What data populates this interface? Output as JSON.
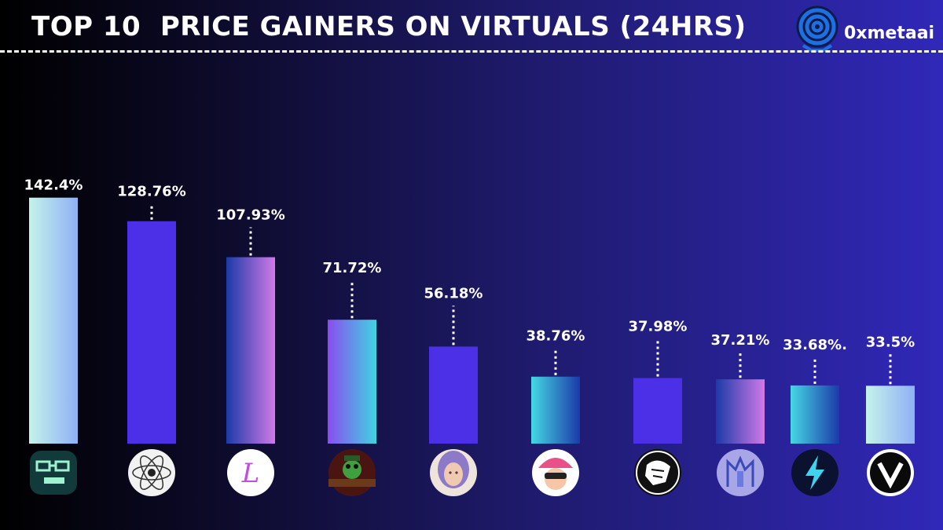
{
  "header": {
    "title": "TOP 10  PRICE GAINERS ON VIRTUALS (24HRS)",
    "brand": "0xmetaai"
  },
  "colors": {
    "bar_purple": "#4b30e8",
    "cyan_light": "#c4f3ea",
    "cyan": "#40d4e0",
    "blue": "#4a8cf0",
    "navy": "#1b3aa8",
    "violet": "#8a4df0",
    "pink": "#d07ae8"
  },
  "chart_data": {
    "type": "bar",
    "title": "TOP 10  PRICE GAINERS ON VIRTUALS (24HRS)",
    "xlabel": "",
    "ylabel": "",
    "values": [
      142.4,
      128.76,
      107.93,
      71.72,
      56.18,
      38.76,
      37.98,
      37.21,
      33.68,
      33.5
    ],
    "value_labels": [
      "142.4%",
      "128.76%",
      "107.93%",
      "71.72%",
      "56.18%",
      "38.76%",
      "37.98%",
      "37.21%",
      "33.68%.",
      "33.5%"
    ],
    "bar_styles": [
      "mint-blue",
      "purple",
      "navy-pink",
      "violet-cyan",
      "purple",
      "cyan-navy",
      "purple",
      "navy-pink",
      "cyan-navy",
      "mint-blue"
    ],
    "icons": [
      "glasses-robot-icon",
      "atom-sketch-icon",
      "script-l-icon",
      "frog-character-icon",
      "woman-portrait-icon",
      "cap-girl-avatar-icon",
      "lion-head-icon",
      "blue-shield-art-icon",
      "lightning-bolt-icon",
      "v-logo-icon"
    ],
    "grid": false,
    "legend": "none"
  }
}
